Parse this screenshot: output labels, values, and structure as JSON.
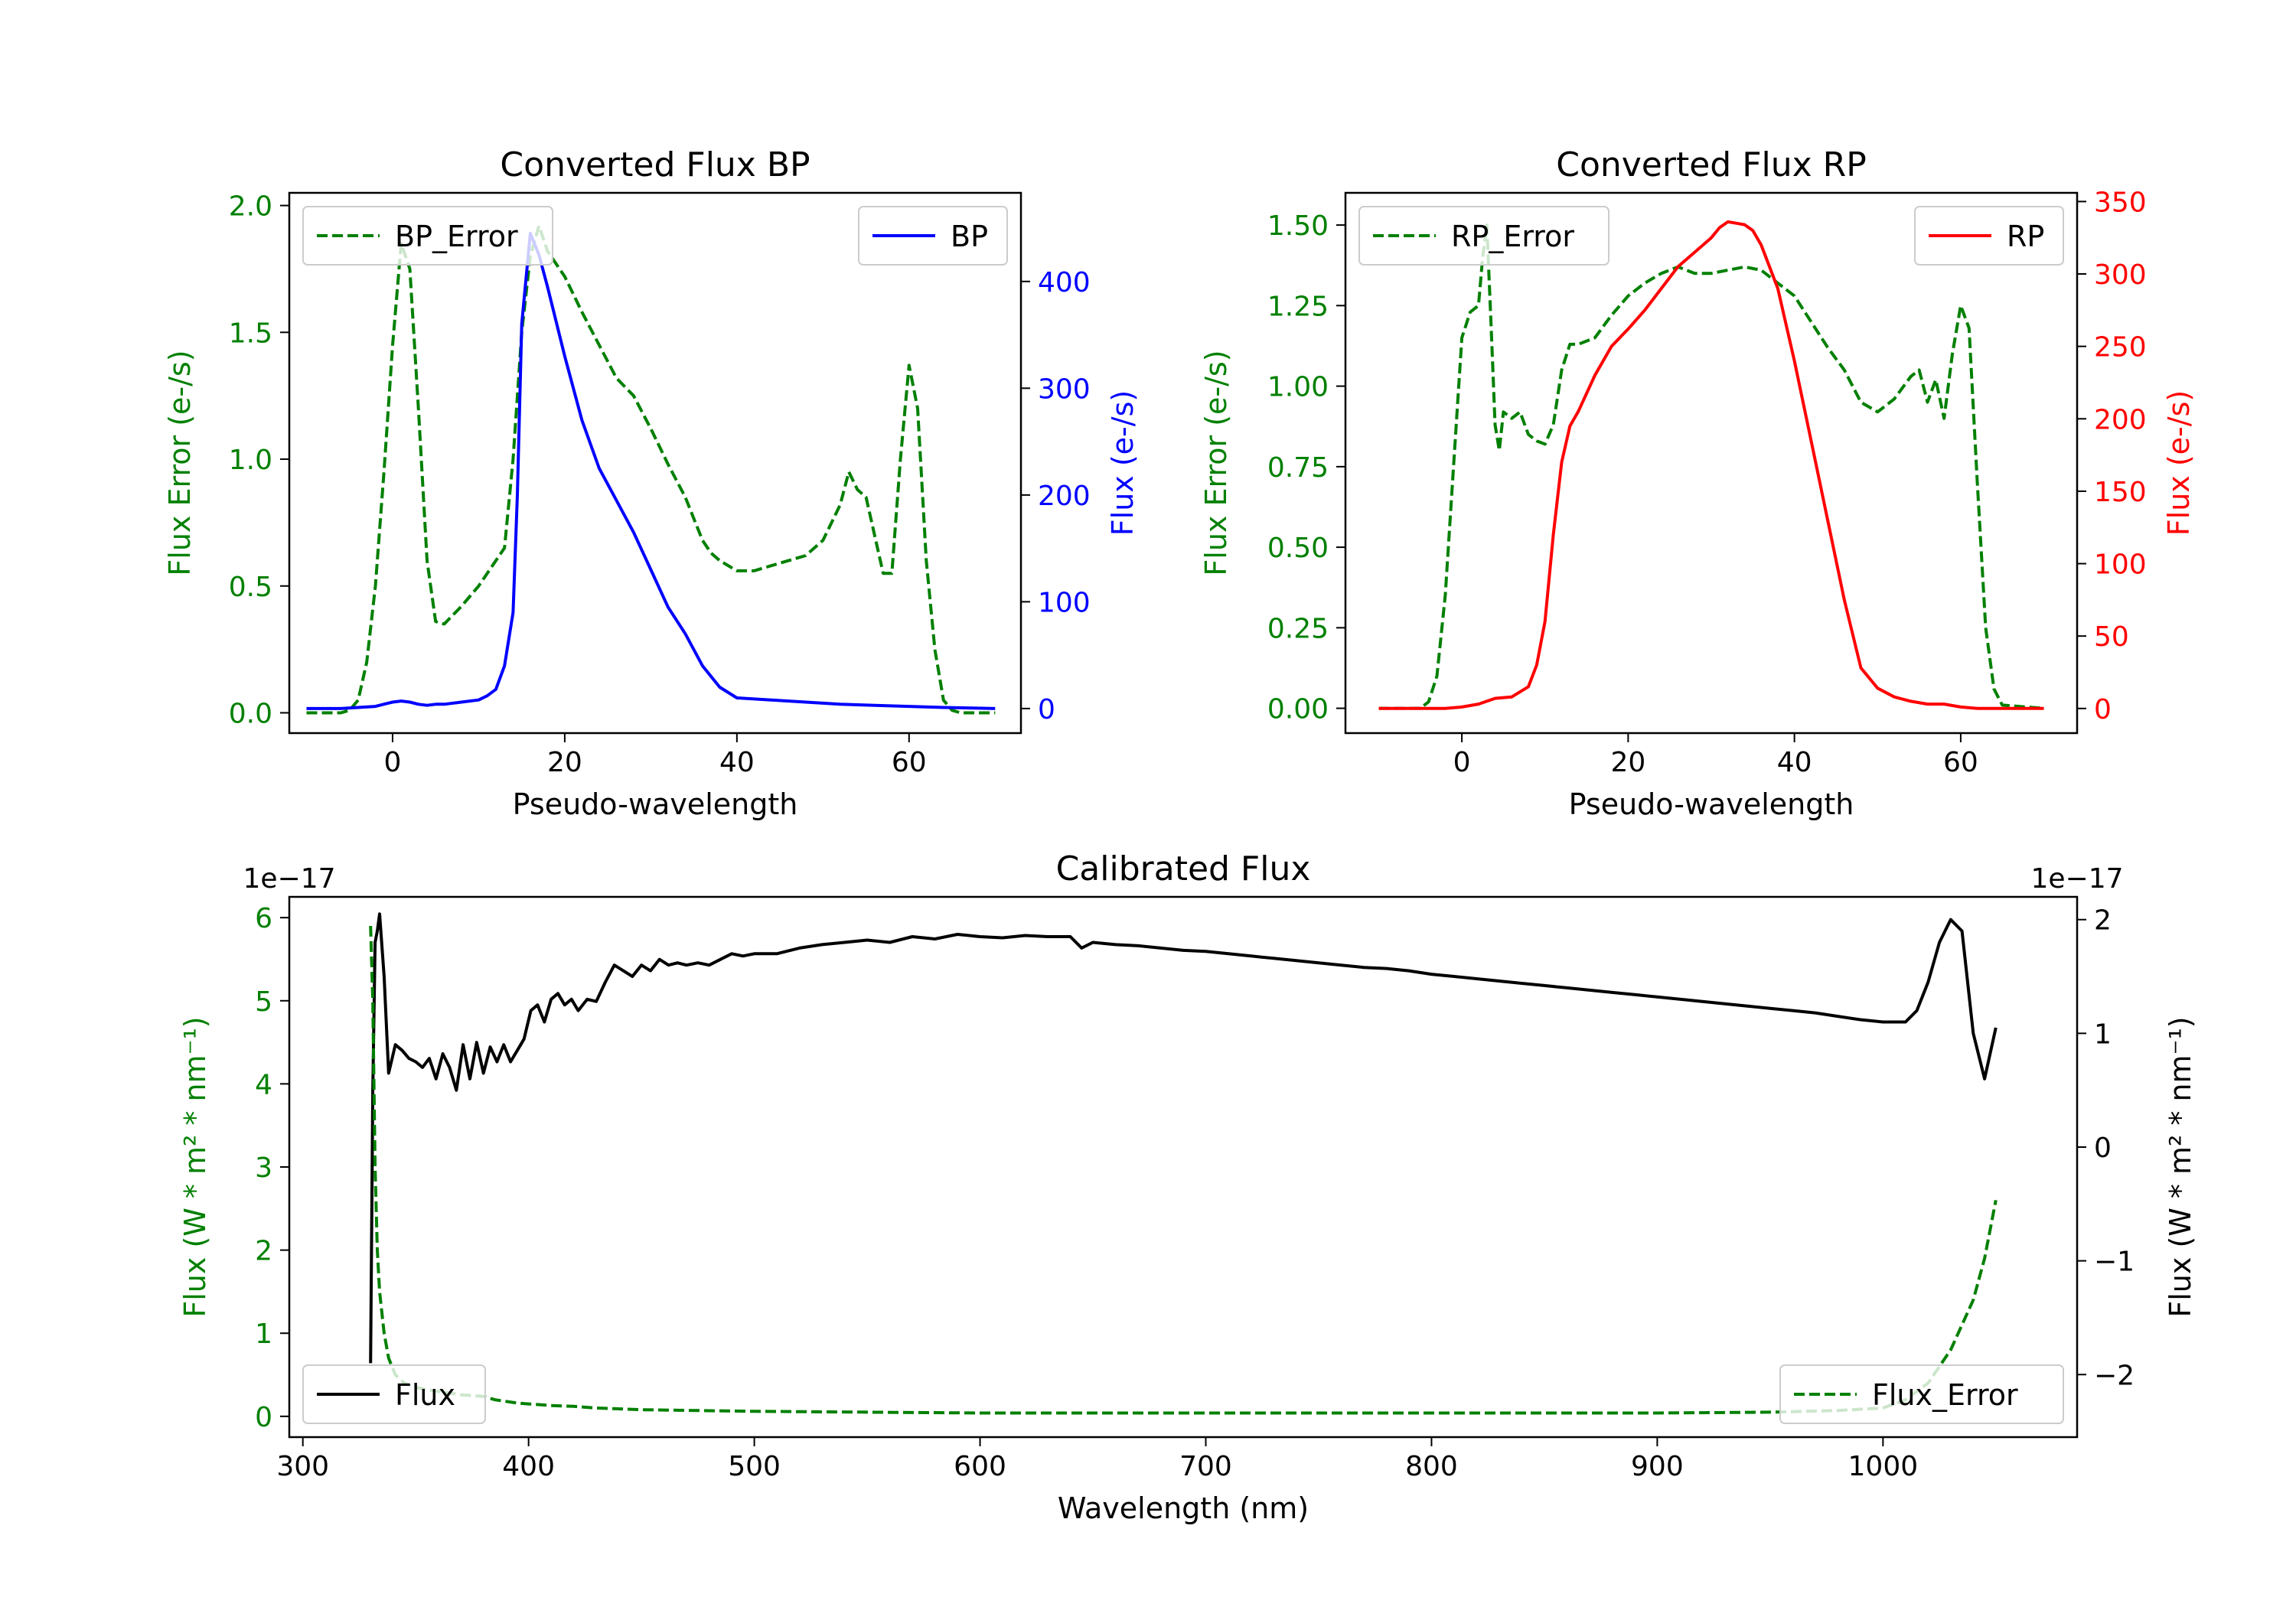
{
  "figure": {
    "colors": {
      "green": "#008000",
      "blue": "#0000ff",
      "red": "#ff0000",
      "black": "#000000"
    }
  },
  "chart_data": [
    {
      "id": "bp",
      "type": "line",
      "title": "Converted Flux BP",
      "xlabel": "Pseudo-wavelength",
      "ylabel_left": "Flux Error (e-/s)",
      "ylabel_right": "Flux (e-/s)",
      "xlim": [
        -12,
        73
      ],
      "ylim_left": [
        -0.08,
        2.05
      ],
      "ylim_right": [
        -23,
        483
      ],
      "xticks": [
        0,
        20,
        40,
        60
      ],
      "yticks_left": [
        "0.0",
        "0.5",
        "1.0",
        "1.5",
        "2.0"
      ],
      "yticks_right": [
        "0",
        "100",
        "200",
        "300",
        "400"
      ],
      "left_tick_color": "#008000",
      "right_tick_color": "#0000ff",
      "legend_left": {
        "label": "BP_Error",
        "position": "upper left"
      },
      "legend_right": {
        "label": "BP",
        "position": "upper right"
      },
      "series": [
        {
          "name": "BP_Error",
          "axis": "left",
          "color": "#008000",
          "style": "dashed",
          "x": [
            -10,
            -6,
            -5,
            -4,
            -3,
            -2,
            -1,
            0,
            1,
            2,
            3,
            4,
            5,
            6,
            8,
            10,
            12,
            13,
            14,
            15,
            16,
            17,
            18,
            20,
            22,
            24,
            26,
            28,
            30,
            32,
            34,
            36,
            37,
            38,
            40,
            42,
            44,
            46,
            48,
            50,
            52,
            53,
            54,
            55,
            56,
            57,
            58,
            59,
            60,
            61,
            62,
            63,
            64,
            65,
            66,
            70
          ],
          "y": [
            0.0,
            0.0,
            0.01,
            0.05,
            0.2,
            0.5,
            0.95,
            1.45,
            1.85,
            1.75,
            1.2,
            0.6,
            0.36,
            0.35,
            0.42,
            0.5,
            0.6,
            0.65,
            1.0,
            1.5,
            1.8,
            1.92,
            1.82,
            1.72,
            1.58,
            1.45,
            1.32,
            1.25,
            1.12,
            0.98,
            0.85,
            0.68,
            0.63,
            0.6,
            0.56,
            0.56,
            0.58,
            0.6,
            0.62,
            0.68,
            0.82,
            0.95,
            0.88,
            0.85,
            0.7,
            0.55,
            0.55,
            1.0,
            1.37,
            1.2,
            0.6,
            0.25,
            0.05,
            0.01,
            0.0,
            0.0
          ]
        },
        {
          "name": "BP",
          "axis": "right",
          "color": "#0000ff",
          "style": "solid",
          "x": [
            -10,
            -6,
            -4,
            -2,
            0,
            1,
            2,
            3,
            4,
            5,
            6,
            8,
            10,
            11,
            12,
            13,
            14,
            14.5,
            15,
            16,
            17,
            18,
            20,
            22,
            24,
            26,
            28,
            30,
            32,
            34,
            36,
            38,
            40,
            44,
            48,
            52,
            56,
            60,
            64,
            70
          ],
          "y": [
            0,
            0,
            1,
            2,
            6,
            7,
            6,
            4,
            3,
            4,
            4,
            6,
            8,
            12,
            18,
            40,
            90,
            200,
            360,
            445,
            425,
            395,
            330,
            270,
            225,
            195,
            165,
            130,
            95,
            70,
            40,
            20,
            10,
            8,
            6,
            4,
            3,
            2,
            1,
            0
          ]
        }
      ]
    },
    {
      "id": "rp",
      "type": "line",
      "title": "Converted Flux RP",
      "xlabel": "Pseudo-wavelength",
      "ylabel_left": "Flux Error (e-/s)",
      "ylabel_right": "Flux (e-/s)",
      "xlim": [
        -14,
        74
      ],
      "ylim_left": [
        -0.077,
        1.6
      ],
      "ylim_right": [
        -17,
        356
      ],
      "xticks": [
        0,
        20,
        40,
        60
      ],
      "yticks_left": [
        "0.00",
        "0.25",
        "0.50",
        "0.75",
        "1.00",
        "1.25",
        "1.50"
      ],
      "yticks_right": [
        "0",
        "50",
        "100",
        "150",
        "200",
        "250",
        "300",
        "350"
      ],
      "left_tick_color": "#008000",
      "right_tick_color": "#ff0000",
      "legend_left": {
        "label": "RP_Error",
        "position": "upper left"
      },
      "legend_right": {
        "label": "RP",
        "position": "upper right"
      },
      "series": [
        {
          "name": "RP_Error",
          "axis": "left",
          "color": "#008000",
          "style": "dashed",
          "x": [
            -10,
            -5,
            -4,
            -3,
            -2,
            -1,
            0,
            1,
            2,
            2.5,
            3,
            3.5,
            4,
            4.5,
            5,
            6,
            7,
            8,
            9,
            10,
            11,
            12,
            13,
            14,
            16,
            18,
            20,
            22,
            24,
            26,
            28,
            30,
            32,
            34,
            36,
            38,
            40,
            42,
            44,
            46,
            48,
            50,
            52,
            54,
            55,
            56,
            57,
            58,
            59,
            60,
            61,
            62,
            63,
            64,
            65,
            70
          ],
          "y": [
            0.0,
            0.0,
            0.02,
            0.1,
            0.35,
            0.75,
            1.15,
            1.23,
            1.25,
            1.4,
            1.5,
            1.2,
            0.88,
            0.8,
            0.92,
            0.9,
            0.92,
            0.85,
            0.83,
            0.82,
            0.88,
            1.05,
            1.13,
            1.13,
            1.15,
            1.22,
            1.28,
            1.32,
            1.35,
            1.37,
            1.35,
            1.35,
            1.36,
            1.37,
            1.36,
            1.32,
            1.28,
            1.2,
            1.12,
            1.05,
            0.95,
            0.92,
            0.96,
            1.03,
            1.05,
            0.95,
            1.02,
            0.9,
            1.1,
            1.25,
            1.18,
            0.7,
            0.25,
            0.06,
            0.01,
            0.0
          ]
        },
        {
          "name": "RP",
          "axis": "right",
          "color": "#ff0000",
          "style": "solid",
          "x": [
            -10,
            -4,
            -2,
            0,
            2,
            4,
            6,
            8,
            9,
            10,
            11,
            12,
            13,
            14,
            16,
            18,
            20,
            22,
            24,
            26,
            28,
            30,
            31,
            32,
            33,
            34,
            35,
            36,
            38,
            40,
            42,
            44,
            46,
            48,
            50,
            52,
            54,
            56,
            58,
            60,
            62,
            64,
            70
          ],
          "y": [
            0,
            0,
            0,
            1,
            3,
            7,
            8,
            15,
            30,
            60,
            120,
            170,
            195,
            205,
            230,
            250,
            262,
            275,
            290,
            305,
            315,
            325,
            332,
            336,
            335,
            334,
            330,
            320,
            290,
            240,
            185,
            130,
            75,
            28,
            14,
            8,
            5,
            3,
            3,
            1,
            0,
            0,
            0
          ]
        }
      ]
    },
    {
      "id": "cal",
      "type": "line",
      "title": "Calibrated Flux",
      "xlabel": "Wavelength (nm)",
      "ylabel_left": "Flux (W * m² * nm⁻¹)",
      "ylabel_right": "Flux (W * m² * nm⁻¹)",
      "offset_left": "1e−17",
      "offset_right": "1e−17",
      "xlim": [
        294,
        1086
      ],
      "ylim_left": [
        -0.25,
        6.25
      ],
      "ylim_right": [
        -2.55,
        2.2
      ],
      "xticks": [
        300,
        400,
        500,
        600,
        700,
        800,
        900,
        1000
      ],
      "yticks_left": [
        "0",
        "1",
        "2",
        "3",
        "4",
        "5",
        "6"
      ],
      "yticks_right": [
        "−2",
        "−1",
        "0",
        "1",
        "2"
      ],
      "left_tick_color": "#008000",
      "right_tick_color": "#000000",
      "legend_left": {
        "label": "Flux",
        "position": "lower left"
      },
      "legend_right": {
        "label": "Flux_Error",
        "position": "lower right"
      },
      "series": [
        {
          "name": "Flux",
          "axis": "right",
          "color": "#000000",
          "style": "solid",
          "x": [
            330,
            331,
            332,
            333,
            334,
            336,
            338,
            341,
            344,
            347,
            350,
            353,
            356,
            359,
            362,
            365,
            368,
            371,
            374,
            377,
            380,
            383,
            386,
            389,
            392,
            395,
            398,
            401,
            404,
            407,
            410,
            413,
            416,
            419,
            422,
            426,
            430,
            434,
            438,
            442,
            446,
            450,
            454,
            458,
            462,
            466,
            470,
            475,
            480,
            485,
            490,
            495,
            500,
            510,
            520,
            530,
            540,
            550,
            560,
            570,
            580,
            590,
            600,
            610,
            620,
            630,
            640,
            645,
            650,
            660,
            670,
            680,
            690,
            700,
            710,
            720,
            730,
            740,
            750,
            760,
            770,
            780,
            790,
            800,
            810,
            820,
            830,
            840,
            850,
            860,
            870,
            880,
            890,
            900,
            910,
            920,
            930,
            940,
            950,
            960,
            970,
            980,
            990,
            1000,
            1010,
            1015,
            1020,
            1025,
            1030,
            1035,
            1040,
            1045,
            1050
          ],
          "y": [
            -1.9,
            0.5,
            1.8,
            1.9,
            2.05,
            1.5,
            0.65,
            0.9,
            0.85,
            0.78,
            0.75,
            0.7,
            0.78,
            0.6,
            0.82,
            0.7,
            0.5,
            0.9,
            0.6,
            0.92,
            0.65,
            0.88,
            0.75,
            0.9,
            0.75,
            0.85,
            0.95,
            1.2,
            1.25,
            1.1,
            1.3,
            1.35,
            1.25,
            1.3,
            1.2,
            1.3,
            1.28,
            1.45,
            1.6,
            1.55,
            1.5,
            1.6,
            1.55,
            1.65,
            1.6,
            1.62,
            1.6,
            1.62,
            1.6,
            1.65,
            1.7,
            1.68,
            1.7,
            1.7,
            1.75,
            1.78,
            1.8,
            1.82,
            1.8,
            1.85,
            1.83,
            1.87,
            1.85,
            1.84,
            1.86,
            1.85,
            1.85,
            1.75,
            1.8,
            1.78,
            1.77,
            1.75,
            1.73,
            1.72,
            1.7,
            1.68,
            1.66,
            1.64,
            1.62,
            1.6,
            1.58,
            1.57,
            1.55,
            1.52,
            1.5,
            1.48,
            1.46,
            1.44,
            1.42,
            1.4,
            1.38,
            1.36,
            1.34,
            1.32,
            1.3,
            1.28,
            1.26,
            1.24,
            1.22,
            1.2,
            1.18,
            1.15,
            1.12,
            1.1,
            1.1,
            1.2,
            1.45,
            1.8,
            2.0,
            1.9,
            1.0,
            0.6,
            1.05
          ]
        },
        {
          "name": "Flux_Error",
          "axis": "left",
          "color": "#008000",
          "style": "dashed",
          "x": [
            330,
            331,
            332,
            333,
            334,
            336,
            338,
            341,
            345,
            350,
            355,
            360,
            365,
            370,
            375,
            380,
            385,
            390,
            395,
            400,
            410,
            420,
            430,
            450,
            500,
            550,
            600,
            650,
            700,
            750,
            800,
            850,
            900,
            950,
            980,
            1000,
            1010,
            1020,
            1030,
            1040,
            1045,
            1050
          ],
          "y": [
            5.9,
            5.0,
            3.0,
            2.0,
            1.5,
            1.0,
            0.7,
            0.5,
            0.4,
            0.35,
            0.32,
            0.3,
            0.28,
            0.26,
            0.25,
            0.24,
            0.2,
            0.18,
            0.16,
            0.15,
            0.13,
            0.12,
            0.1,
            0.08,
            0.06,
            0.05,
            0.04,
            0.04,
            0.04,
            0.04,
            0.04,
            0.04,
            0.04,
            0.05,
            0.07,
            0.1,
            0.2,
            0.4,
            0.8,
            1.4,
            1.9,
            2.6
          ]
        }
      ]
    }
  ]
}
